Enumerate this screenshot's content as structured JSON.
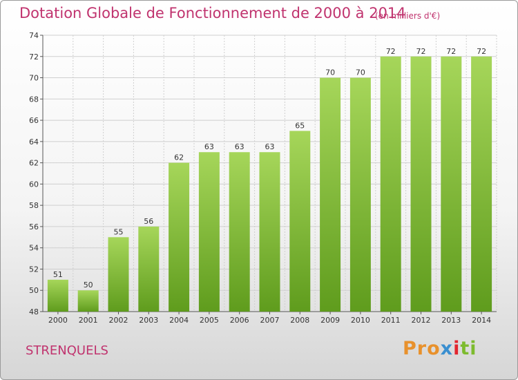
{
  "chart_data": {
    "type": "bar",
    "title": "Dotation Globale de Fonctionnement de 2000 à 2014",
    "subtitle": "(en milliers d'€)",
    "categories": [
      "2000",
      "2001",
      "2002",
      "2003",
      "2004",
      "2005",
      "2006",
      "2007",
      "2008",
      "2009",
      "2010",
      "2011",
      "2012",
      "2013",
      "2014"
    ],
    "values": [
      51,
      50,
      55,
      56,
      62,
      63,
      63,
      63,
      65,
      70,
      70,
      72,
      72,
      72,
      72
    ],
    "xlabel": "",
    "ylabel": "",
    "ylim": [
      48,
      74
    ],
    "yticks": [
      48,
      50,
      52,
      54,
      56,
      58,
      60,
      62,
      64,
      66,
      68,
      70,
      72,
      74
    ],
    "grid": true,
    "bar_color_top": "#a6d65a",
    "bar_color_bottom": "#5f9c1d"
  },
  "footer": {
    "commune": "STRENQUELS",
    "logo": {
      "p1": "Pro",
      "p2": "x",
      "p3": "i",
      "p4": "ti"
    }
  },
  "colors": {
    "title": "#c0336e",
    "grid": "#cfcfcf",
    "axis": "#555555"
  }
}
